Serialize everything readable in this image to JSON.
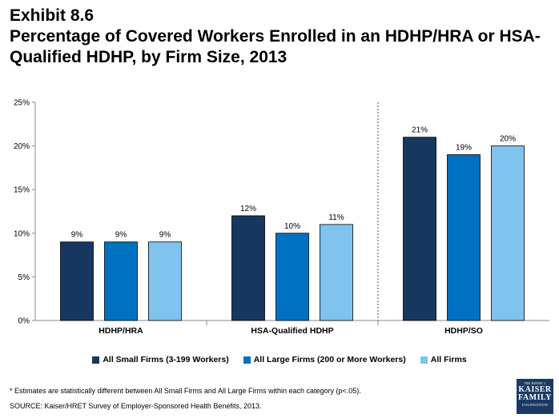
{
  "header": {
    "exhibit": "Exhibit 8.6",
    "title": "Percentage of Covered Workers Enrolled in an HDHP/HRA or HSA-Qualified HDHP, by Firm Size, 2013"
  },
  "colors": {
    "small_firms": "#17375e",
    "large_firms": "#0070c0",
    "all_firms": "#7fc3ee"
  },
  "chart_data": {
    "type": "bar",
    "categories": [
      "HDHP/HRA",
      "HSA-Qualified HDHP",
      "HDHP/SO"
    ],
    "series": [
      {
        "name": "All Small Firms (3-199 Workers)",
        "values": [
          9,
          12,
          21
        ],
        "labels": [
          "9%",
          "12%",
          "21%"
        ]
      },
      {
        "name": "All Large Firms (200 or More Workers)",
        "values": [
          9,
          10,
          19
        ],
        "labels": [
          "9%",
          "10%",
          "19%"
        ]
      },
      {
        "name": "All Firms",
        "values": [
          9,
          11,
          20
        ],
        "labels": [
          "9%",
          "11%",
          "20%"
        ]
      }
    ],
    "yticks": [
      "0%",
      "5%",
      "10%",
      "15%",
      "20%",
      "25%"
    ],
    "ylim": [
      0,
      25
    ],
    "grid": false,
    "legend_position": "bottom"
  },
  "legend": [
    {
      "label": "All Small Firms (3-199 Workers)",
      "color": "#17375e"
    },
    {
      "label": "All Large Firms (200 or More Workers)",
      "color": "#0070c0"
    },
    {
      "label": "All Firms",
      "color": "#7fc3ee"
    }
  ],
  "footnote": "* Estimates are statistically different between All Small Firms and All Large Firms within each category (p<.05).",
  "source": "SOURCE:  Kaiser/HRET Survey of Employer-Sponsored Health Benefits, 2013.",
  "logo": {
    "line1": "THE HENRY J.",
    "line2": "KAISER",
    "line3": "FAMILY",
    "line4": "FOUNDATION"
  }
}
